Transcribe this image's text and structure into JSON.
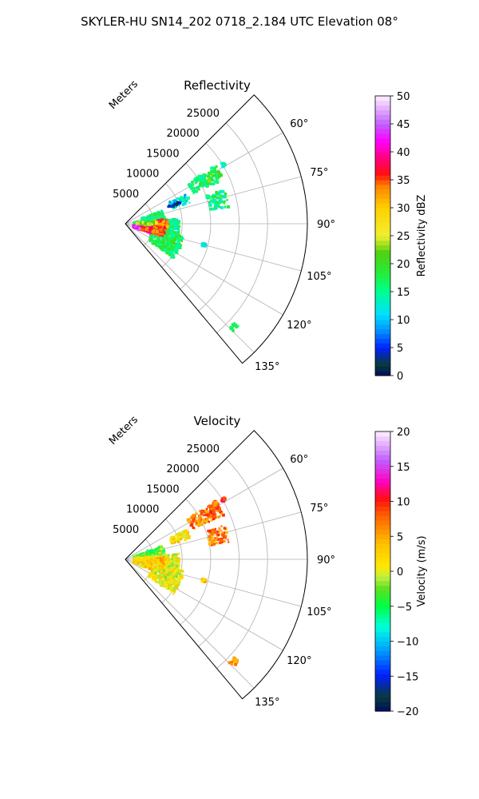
{
  "title": "SKYLER-HU  SN14_202  0718_2.184 UTC Elevation 08°",
  "chart_data": [
    {
      "type": "heatmap",
      "title": "Reflectivity",
      "projection": "polar sector",
      "range_label": "Meters",
      "range_ticks": [
        "5000",
        "10000",
        "15000",
        "20000",
        "25000"
      ],
      "range_tick_values": [
        5000,
        10000,
        15000,
        20000,
        25000
      ],
      "range_max": 32000,
      "azimuth_ticks": [
        "60°",
        "75°",
        "90°",
        "105°",
        "120°",
        "135°"
      ],
      "azimuth_tick_values": [
        60,
        75,
        90,
        105,
        120,
        135
      ],
      "azimuth_range": [
        45,
        140
      ],
      "grid": true,
      "colorbar": {
        "label": "Reflectivity dBZ",
        "ticks": [
          "0",
          "5",
          "10",
          "15",
          "20",
          "25",
          "30",
          "35",
          "40",
          "45",
          "50"
        ],
        "vmin": 0,
        "vmax": 50,
        "placement": "right"
      },
      "echoes": [
        {
          "az": [
            57,
            66
          ],
          "r": [
            13000,
            19000
          ],
          "value": 16
        },
        {
          "az": [
            60,
            64
          ],
          "r": [
            16500,
            19000
          ],
          "value": 20
        },
        {
          "az": [
            64,
            72
          ],
          "r": [
            8500,
            12000
          ],
          "value": 12
        },
        {
          "az": [
            68,
            70
          ],
          "r": [
            8000,
            10500
          ],
          "value": 4
        },
        {
          "az": [
            71,
            81
          ],
          "r": [
            15000,
            18500
          ],
          "value": 16
        },
        {
          "az": [
            70,
            84
          ],
          "r": [
            3000,
            7000
          ],
          "value": 16
        },
        {
          "az": [
            84,
            104
          ],
          "r": [
            1500,
            9500
          ],
          "value": 16
        },
        {
          "az": [
            84,
            98
          ],
          "r": [
            4500,
            7500
          ],
          "value": 34
        },
        {
          "az": [
            86,
            92
          ],
          "r": [
            2000,
            5500
          ],
          "value": 24
        },
        {
          "az": [
            101,
            112
          ],
          "r": [
            1500,
            5000
          ],
          "value": 43
        },
        {
          "az": [
            101,
            126
          ],
          "r": [
            5000,
            10500
          ],
          "value": 18
        },
        {
          "az": [
            100,
            110
          ],
          "r": [
            3000,
            7000
          ],
          "value": 36
        },
        {
          "az": [
            104,
            106
          ],
          "r": [
            14000,
            14600
          ],
          "value": 12
        },
        {
          "az": [
            58,
            60
          ],
          "r": [
            19800,
            20500
          ],
          "value": 14
        },
        {
          "az": [
            132,
            135
          ],
          "r": [
            25800,
            26800
          ],
          "value": 18
        }
      ]
    },
    {
      "type": "heatmap",
      "title": "Velocity",
      "projection": "polar sector",
      "range_label": "Meters",
      "range_ticks": [
        "5000",
        "10000",
        "15000",
        "20000",
        "25000"
      ],
      "range_tick_values": [
        5000,
        10000,
        15000,
        20000,
        25000
      ],
      "range_max": 32000,
      "azimuth_ticks": [
        "60°",
        "75°",
        "90°",
        "105°",
        "120°",
        "135°"
      ],
      "azimuth_tick_values": [
        60,
        75,
        90,
        105,
        120,
        135
      ],
      "azimuth_range": [
        45,
        140
      ],
      "grid": true,
      "colorbar": {
        "label": "Velocity (m/s)",
        "ticks": [
          "−20",
          "−15",
          "−10",
          "−5",
          "0",
          "5",
          "10",
          "15",
          "20"
        ],
        "vmin": -20,
        "vmax": 20,
        "placement": "right"
      },
      "echoes": [
        {
          "az": [
            57,
            66
          ],
          "r": [
            13000,
            19000
          ],
          "value": 7
        },
        {
          "az": [
            60,
            64
          ],
          "r": [
            16500,
            19000
          ],
          "value": 9
        },
        {
          "az": [
            64,
            72
          ],
          "r": [
            8500,
            12000
          ],
          "value": 2
        },
        {
          "az": [
            71,
            81
          ],
          "r": [
            15000,
            18500
          ],
          "value": 7
        },
        {
          "az": [
            70,
            84
          ],
          "r": [
            1500,
            7000
          ],
          "value": -3
        },
        {
          "az": [
            84,
            104
          ],
          "r": [
            1500,
            9500
          ],
          "value": 1
        },
        {
          "az": [
            88,
            98
          ],
          "r": [
            4500,
            7500
          ],
          "value": 4
        },
        {
          "az": [
            101,
            112
          ],
          "r": [
            1500,
            5000
          ],
          "value": 2
        },
        {
          "az": [
            101,
            126
          ],
          "r": [
            5000,
            10500
          ],
          "value": 1
        },
        {
          "az": [
            104,
            106
          ],
          "r": [
            14000,
            14600
          ],
          "value": 3
        },
        {
          "az": [
            58,
            60
          ],
          "r": [
            19800,
            20500
          ],
          "value": 10
        },
        {
          "az": [
            132,
            135
          ],
          "r": [
            25800,
            26800
          ],
          "value": 5
        }
      ]
    }
  ]
}
